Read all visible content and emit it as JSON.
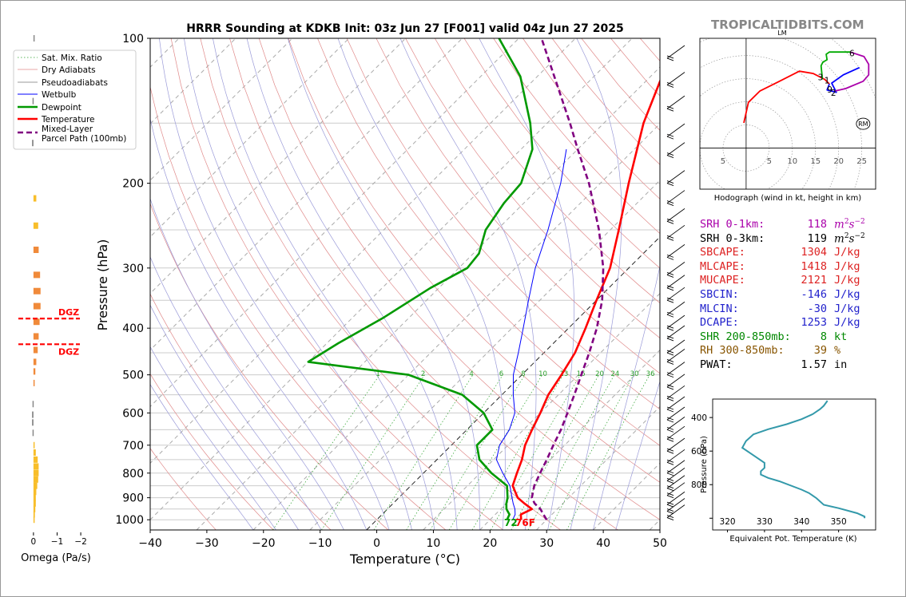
{
  "brand": "TROPICALTIDBITS.COM",
  "chart_data": [
    {
      "type": "line",
      "title": "HRRR Sounding at KDKB Init: 03z Jun 27 [F001] valid 04z Jun 27 2025",
      "xlabel": "Temperature (°C)",
      "ylabel": "Pressure (hPa)",
      "xlim": [
        -40,
        50
      ],
      "ylim": [
        1050,
        100
      ],
      "y_scale": "log",
      "x_ticks": [
        "−40",
        "−30",
        "−20",
        "−10",
        "0",
        "10",
        "20",
        "30",
        "40",
        "50"
      ],
      "y_ticks": [
        "100",
        "200",
        "300",
        "400",
        "500",
        "600",
        "700",
        "800",
        "900",
        "1000"
      ],
      "legend": {
        "placement": "top-left",
        "entries": [
          "Sat. Mix. Ratio",
          "Dry Adiabats",
          "Pseudoadiabats",
          "Wetbulb",
          "Dewpoint",
          "Temperature",
          "Mixed-Layer\nParcel Path (100mb)"
        ]
      },
      "mixing_ratio_labels": [
        "1",
        "2",
        "4",
        "6",
        "8",
        "10",
        "13",
        "16",
        "20",
        "24",
        "30",
        "36"
      ],
      "surface_labels": {
        "dewpoint": "72",
        "temperature": "76F"
      },
      "series": [
        {
          "name": "Temperature",
          "color": "#ff0000",
          "points": [
            [
              1000,
              25.5
            ],
            [
              975,
              24.5
            ],
            [
              950,
              25.5
            ],
            [
              925,
              23.2
            ],
            [
              900,
              21.0
            ],
            [
              850,
              18.0
            ],
            [
              800,
              16.5
            ],
            [
              750,
              15.0
            ],
            [
              700,
              13.0
            ],
            [
              650,
              11.5
            ],
            [
              600,
              10.0
            ],
            [
              550,
              8.2
            ],
            [
              500,
              7.0
            ],
            [
              450,
              5.5
            ],
            [
              400,
              3.0
            ],
            [
              350,
              0.0
            ],
            [
              300,
              -3.3
            ],
            [
              250,
              -8.5
            ],
            [
              200,
              -15.0
            ],
            [
              150,
              -23.0
            ],
            [
              120,
              -28.0
            ],
            [
              100,
              -34.8
            ]
          ]
        },
        {
          "name": "Dewpoint",
          "color": "#009900",
          "points": [
            [
              1000,
              23.0
            ],
            [
              975,
              22.5
            ],
            [
              950,
              21.0
            ],
            [
              925,
              20.0
            ],
            [
              900,
              19.2
            ],
            [
              850,
              17.0
            ],
            [
              800,
              12.0
            ],
            [
              750,
              7.5
            ],
            [
              700,
              4.5
            ],
            [
              650,
              4.5
            ],
            [
              600,
              0.0
            ],
            [
              550,
              -7.0
            ],
            [
              500,
              -20.0
            ],
            [
              470,
              -40.0
            ],
            [
              430,
              -38.0
            ],
            [
              380,
              -34.5
            ],
            [
              330,
              -31.5
            ],
            [
              300,
              -28.5
            ],
            [
              280,
              -29.0
            ],
            [
              250,
              -32.0
            ],
            [
              220,
              -33.5
            ],
            [
              200,
              -34.0
            ],
            [
              170,
              -38.0
            ],
            [
              150,
              -43.0
            ],
            [
              120,
              -53.0
            ],
            [
              100,
              -63.5
            ]
          ]
        },
        {
          "name": "Wetbulb",
          "color": "#0000ff",
          "points": [
            [
              1000,
              24.0
            ],
            [
              975,
              23.5
            ],
            [
              950,
              22.5
            ],
            [
              925,
              21.2
            ],
            [
              900,
              20.0
            ],
            [
              850,
              17.5
            ],
            [
              800,
              14.0
            ],
            [
              750,
              10.5
            ],
            [
              700,
              8.5
            ],
            [
              650,
              7.5
            ],
            [
              600,
              5.5
            ],
            [
              550,
              2.0
            ],
            [
              500,
              -1.5
            ],
            [
              450,
              -4.5
            ],
            [
              400,
              -8.0
            ],
            [
              350,
              -12.0
            ],
            [
              300,
              -16.5
            ],
            [
              250,
              -21.0
            ],
            [
              200,
              -27.0
            ],
            [
              170,
              -32.0
            ]
          ]
        },
        {
          "name": "Mixed-Layer Parcel Path (100mb)",
          "color": "#800080",
          "dashed": true,
          "points": [
            [
              1000,
              30.0
            ],
            [
              975,
              28.5
            ],
            [
              950,
              27.0
            ],
            [
              925,
              25.0
            ],
            [
              900,
              23.5
            ],
            [
              850,
              21.8
            ],
            [
              800,
              20.6
            ],
            [
              750,
              19.4
            ],
            [
              700,
              18.0
            ],
            [
              650,
              16.6
            ],
            [
              600,
              14.8
            ],
            [
              550,
              12.8
            ],
            [
              500,
              10.5
            ],
            [
              450,
              8.0
            ],
            [
              400,
              5.0
            ],
            [
              350,
              1.0
            ],
            [
              300,
              -4.5
            ],
            [
              250,
              -12.0
            ],
            [
              200,
              -22.0
            ],
            [
              170,
              -30.0
            ],
            [
              150,
              -36.0
            ],
            [
              120,
              -47.0
            ],
            [
              100,
              -56.0
            ]
          ]
        }
      ]
    },
    {
      "type": "bar",
      "xlabel": "Omega (Pa/s)",
      "xlim": [
        0.3,
        -2.2
      ],
      "x_ticks": [
        "0",
        "−1",
        "−2"
      ],
      "dgz_label": "DGZ",
      "dgz_pressures": [
        382,
        432
      ],
      "values": [
        {
          "p": 100,
          "w": 0.0
        },
        {
          "p": 135,
          "w": 0.04
        },
        {
          "p": 165,
          "w": 0.06
        },
        {
          "p": 215,
          "w": -0.12
        },
        {
          "p": 245,
          "w": -0.2
        },
        {
          "p": 275,
          "w": -0.22
        },
        {
          "p": 310,
          "w": -0.28
        },
        {
          "p": 335,
          "w": -0.3
        },
        {
          "p": 360,
          "w": -0.3
        },
        {
          "p": 388,
          "w": -0.26
        },
        {
          "p": 416,
          "w": -0.22
        },
        {
          "p": 444,
          "w": -0.18
        },
        {
          "p": 470,
          "w": -0.12
        },
        {
          "p": 492,
          "w": -0.08
        },
        {
          "p": 520,
          "w": -0.02
        },
        {
          "p": 575,
          "w": 0.04
        },
        {
          "p": 605,
          "w": 0.06
        },
        {
          "p": 628,
          "w": 0.06
        },
        {
          "p": 660,
          "w": 0.04
        },
        {
          "p": 700,
          "w": -0.04
        },
        {
          "p": 725,
          "w": -0.1
        },
        {
          "p": 750,
          "w": -0.18
        },
        {
          "p": 775,
          "w": -0.22
        },
        {
          "p": 800,
          "w": -0.22
        },
        {
          "p": 825,
          "w": -0.2
        },
        {
          "p": 850,
          "w": -0.16
        },
        {
          "p": 875,
          "w": -0.12
        },
        {
          "p": 900,
          "w": -0.1
        },
        {
          "p": 925,
          "w": -0.1
        },
        {
          "p": 950,
          "w": -0.08
        },
        {
          "p": 975,
          "w": -0.06
        },
        {
          "p": 1000,
          "w": -0.04
        }
      ]
    },
    {
      "type": "line",
      "title": "LM",
      "xlabel": "Hodograph (wind in kt, height in km)",
      "x_ticks": [
        "5",
        "5",
        "10",
        "15",
        "20",
        "25"
      ],
      "xlim": [
        -10,
        28
      ],
      "ylim": [
        -9,
        24
      ],
      "storm_motion_label": "RM",
      "height_labels": [
        {
          "t": "6",
          "x": 23,
          "y": 20.8
        },
        {
          "t": "3",
          "x": 16.2,
          "y": 15.5
        },
        {
          "t": "1",
          "x": 17.6,
          "y": 14.8
        },
        {
          "t": "9",
          "x": 18.2,
          "y": 12.8
        },
        {
          "t": "2",
          "x": 19.0,
          "y": 12.1
        }
      ],
      "storm_motion": {
        "x": 25.3,
        "y": 5.3
      },
      "series": [
        {
          "name": "0-3 km",
          "color": "#ff0000",
          "points": [
            [
              -0.5,
              5.5
            ],
            [
              0.5,
              10.0
            ],
            [
              3,
              12.5
            ],
            [
              7,
              14.5
            ],
            [
              11.5,
              16.8
            ],
            [
              14.5,
              16.3
            ],
            [
              17,
              15.0
            ],
            [
              18,
              14.0
            ]
          ]
        },
        {
          "name": "3-6 km",
          "color": "#0000ff",
          "points": [
            [
              18,
              14.0
            ],
            [
              17.5,
              12.7
            ],
            [
              19.5,
              12.2
            ],
            [
              18.5,
              14.2
            ],
            [
              21,
              16.0
            ],
            [
              24.5,
              17.6
            ]
          ]
        },
        {
          "name": "6-9 km",
          "color": "#00aa00",
          "points": [
            [
              16.5,
              15.0
            ],
            [
              16.2,
              18.0
            ],
            [
              16.6,
              18.8
            ],
            [
              17.5,
              19.3
            ],
            [
              17.3,
              20.5
            ],
            [
              18,
              21.0
            ],
            [
              22.5,
              21.0
            ]
          ]
        },
        {
          "name": "9+ km",
          "color": "#aa00aa",
          "points": [
            [
              22.5,
              21.0
            ],
            [
              25.5,
              20.0
            ],
            [
              26.5,
              18.3
            ],
            [
              26.5,
              16.0
            ],
            [
              25.3,
              14.6
            ],
            [
              21.5,
              13.0
            ],
            [
              19.3,
              12.5
            ]
          ]
        }
      ]
    },
    {
      "type": "line",
      "ylabel": "Pressure (hPa)",
      "xlabel": "Equivalent Pot. Temperature (K)",
      "x_ticks": [
        "320",
        "330",
        "340",
        "350"
      ],
      "y_ticks": [
        "400",
        "600",
        "800"
      ],
      "xlim": [
        316,
        360
      ],
      "ylim": [
        1070,
        290
      ],
      "series": [
        {
          "name": "Theta-e",
          "color": "#3399aa",
          "points": [
            [
              357,
              1000
            ],
            [
              357,
              990
            ],
            [
              355,
              970
            ],
            [
              350,
              940
            ],
            [
              346,
              920
            ],
            [
              344,
              880
            ],
            [
              342,
              850
            ],
            [
              340,
              830
            ],
            [
              334,
              780
            ],
            [
              331,
              760
            ],
            [
              329,
              740
            ],
            [
              329,
              720
            ],
            [
              330,
              700
            ],
            [
              330,
              670
            ],
            [
              328,
              640
            ],
            [
              326,
              610
            ],
            [
              324,
              580
            ],
            [
              325,
              540
            ],
            [
              327,
              500
            ],
            [
              331,
              470
            ],
            [
              336,
              440
            ],
            [
              340,
              410
            ],
            [
              343,
              380
            ],
            [
              345,
              350
            ],
            [
              346,
              330
            ],
            [
              347,
              300
            ]
          ]
        }
      ]
    }
  ],
  "indices": [
    {
      "label": "SRH 0-1km:",
      "value": "118",
      "unit": "m2s-2",
      "color": "#aa00aa"
    },
    {
      "label": "SRH 0-3km:",
      "value": "119",
      "unit": "m2s-2",
      "color": "#000000"
    },
    {
      "label": "SBCAPE:",
      "value": "1304",
      "unit": "J/kg",
      "color": "#dd2222"
    },
    {
      "label": "MLCAPE:",
      "value": "1418",
      "unit": "J/kg",
      "color": "#dd2222"
    },
    {
      "label": "MUCAPE:",
      "value": "2121",
      "unit": "J/kg",
      "color": "#dd2222"
    },
    {
      "label": "SBCIN:",
      "value": "-146",
      "unit": "J/kg",
      "color": "#2222cc"
    },
    {
      "label": "MLCIN:",
      "value": "-30",
      "unit": "J/kg",
      "color": "#2222cc"
    },
    {
      "label": "DCAPE:",
      "value": "1253",
      "unit": "J/kg",
      "color": "#2222cc"
    },
    {
      "label": "SHR 200-850mb:",
      "value": "8",
      "unit": "kt",
      "color": "#008800"
    },
    {
      "label": "RH 300-850mb:",
      "value": "39",
      "unit": "%",
      "color": "#885500"
    },
    {
      "label": "PWAT:",
      "value": "1.57",
      "unit": "in",
      "color": "#000000"
    }
  ]
}
